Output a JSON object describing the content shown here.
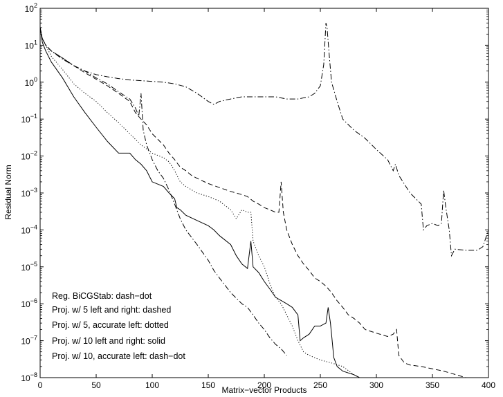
{
  "chart_data": {
    "type": "line",
    "xlabel": "Matrix−vector Products",
    "ylabel": "Residual Norm",
    "xlim": [
      0,
      400
    ],
    "ylim": [
      1e-08,
      100
    ],
    "yscale": "log",
    "grid": false,
    "x_ticks": [
      0,
      50,
      100,
      150,
      200,
      250,
      300,
      350,
      400
    ],
    "y_tick_exponents": [
      -8,
      -7,
      -6,
      -5,
      -4,
      -3,
      -2,
      -1,
      0,
      1,
      2
    ],
    "y_tick_base": "10",
    "legend_position": "bottom-left",
    "legend": [
      "Reg. BiCGStab: dash−dot",
      "Proj. w/ 5 left and right: dashed",
      "Proj. w/ 5, accurate left: dotted",
      "Proj. w/ 10 left and right: solid",
      "Proj. w/ 10, accurate left: dash−dot"
    ],
    "series": [
      {
        "style": "dashdot",
        "points": [
          [
            0,
            30
          ],
          [
            2,
            15
          ],
          [
            5,
            10
          ],
          [
            10,
            7
          ],
          [
            20,
            4.2
          ],
          [
            30,
            2.8
          ],
          [
            40,
            2.0
          ],
          [
            50,
            1.6
          ],
          [
            60,
            1.4
          ],
          [
            70,
            1.25
          ],
          [
            80,
            1.15
          ],
          [
            90,
            1.1
          ],
          [
            100,
            1.05
          ],
          [
            110,
            1.0
          ],
          [
            120,
            0.9
          ],
          [
            130,
            0.75
          ],
          [
            140,
            0.5
          ],
          [
            150,
            0.3
          ],
          [
            155,
            0.25
          ],
          [
            160,
            0.3
          ],
          [
            170,
            0.35
          ],
          [
            180,
            0.4
          ],
          [
            190,
            0.4
          ],
          [
            200,
            0.4
          ],
          [
            210,
            0.4
          ],
          [
            220,
            0.35
          ],
          [
            230,
            0.35
          ],
          [
            240,
            0.4
          ],
          [
            245,
            0.5
          ],
          [
            250,
            0.8
          ],
          [
            253,
            3
          ],
          [
            255,
            40
          ],
          [
            256,
            30
          ],
          [
            258,
            5
          ],
          [
            260,
            1
          ],
          [
            265,
            0.3
          ],
          [
            270,
            0.1
          ],
          [
            280,
            0.05
          ],
          [
            290,
            0.03
          ],
          [
            300,
            0.015
          ],
          [
            310,
            0.008
          ],
          [
            315,
            0.004
          ],
          [
            317,
            0.006
          ],
          [
            320,
            0.003
          ],
          [
            330,
            0.001
          ],
          [
            340,
            0.0005
          ],
          [
            342,
            0.0001
          ],
          [
            345,
            0.00013
          ],
          [
            350,
            0.00015
          ],
          [
            355,
            0.00013
          ],
          [
            358,
            0.00015
          ],
          [
            360,
            0.0012
          ],
          [
            362,
            0.0004
          ],
          [
            365,
            0.0001
          ],
          [
            367,
            2e-05
          ],
          [
            370,
            3e-05
          ],
          [
            380,
            2.8e-05
          ],
          [
            390,
            2.8e-05
          ],
          [
            395,
            3.5e-05
          ],
          [
            400,
            0.0001
          ]
        ]
      },
      {
        "style": "dashed",
        "points": [
          [
            0,
            30
          ],
          [
            2,
            15
          ],
          [
            5,
            10
          ],
          [
            10,
            7
          ],
          [
            20,
            4.5
          ],
          [
            30,
            2.8
          ],
          [
            40,
            1.8
          ],
          [
            50,
            1.2
          ],
          [
            60,
            0.8
          ],
          [
            70,
            0.5
          ],
          [
            80,
            0.3
          ],
          [
            85,
            0.15
          ],
          [
            90,
            0.1
          ],
          [
            95,
            0.07
          ],
          [
            100,
            0.04
          ],
          [
            110,
            0.02
          ],
          [
            115,
            0.012
          ],
          [
            120,
            0.008
          ],
          [
            125,
            0.005
          ],
          [
            130,
            0.004
          ],
          [
            135,
            0.003
          ],
          [
            140,
            0.0025
          ],
          [
            150,
            0.0018
          ],
          [
            160,
            0.0014
          ],
          [
            170,
            0.0011
          ],
          [
            180,
            0.0009
          ],
          [
            185,
            0.0008
          ],
          [
            190,
            0.0006
          ],
          [
            195,
            0.0005
          ],
          [
            200,
            0.0004
          ],
          [
            205,
            0.00035
          ],
          [
            210,
            0.0003
          ],
          [
            213,
            0.0003
          ],
          [
            215,
            0.002
          ],
          [
            217,
            0.0003
          ],
          [
            220,
            0.0001
          ],
          [
            225,
            4e-05
          ],
          [
            230,
            2e-05
          ],
          [
            235,
            1.2e-05
          ],
          [
            240,
            8e-06
          ],
          [
            245,
            5e-06
          ],
          [
            250,
            4e-06
          ],
          [
            255,
            3e-06
          ],
          [
            260,
            2e-06
          ],
          [
            265,
            1.2e-06
          ],
          [
            270,
            8e-07
          ],
          [
            275,
            5e-07
          ],
          [
            280,
            4e-07
          ],
          [
            285,
            3e-07
          ],
          [
            290,
            2e-07
          ],
          [
            300,
            1.6e-07
          ],
          [
            310,
            1.3e-07
          ],
          [
            315,
            1.5e-07
          ],
          [
            318,
            2e-07
          ],
          [
            320,
            4e-08
          ],
          [
            325,
            2.5e-08
          ],
          [
            330,
            2.2e-08
          ],
          [
            340,
            2e-08
          ],
          [
            360,
            1.5e-08
          ],
          [
            380,
            1e-08
          ],
          [
            400,
            9e-09
          ]
        ]
      },
      {
        "style": "dotted",
        "points": [
          [
            0,
            30
          ],
          [
            2,
            15
          ],
          [
            5,
            10
          ],
          [
            10,
            5
          ],
          [
            20,
            2.2
          ],
          [
            30,
            0.9
          ],
          [
            40,
            0.5
          ],
          [
            50,
            0.3
          ],
          [
            60,
            0.15
          ],
          [
            70,
            0.08
          ],
          [
            80,
            0.04
          ],
          [
            90,
            0.02
          ],
          [
            100,
            0.012
          ],
          [
            110,
            0.009
          ],
          [
            115,
            0.007
          ],
          [
            120,
            0.004
          ],
          [
            125,
            0.002
          ],
          [
            130,
            0.0015
          ],
          [
            140,
            0.001
          ],
          [
            150,
            0.0008
          ],
          [
            160,
            0.0006
          ],
          [
            170,
            0.00035
          ],
          [
            175,
            0.0002
          ],
          [
            180,
            0.00035
          ],
          [
            185,
            0.0003
          ],
          [
            188,
            0.0003
          ],
          [
            190,
            5e-05
          ],
          [
            195,
            2e-05
          ],
          [
            200,
            1e-05
          ],
          [
            205,
            3.5e-06
          ],
          [
            210,
            1.5e-06
          ],
          [
            215,
            1e-06
          ],
          [
            220,
            5e-07
          ],
          [
            225,
            2.5e-07
          ],
          [
            230,
            1e-07
          ],
          [
            235,
            5e-08
          ],
          [
            240,
            4e-08
          ],
          [
            250,
            3e-08
          ],
          [
            260,
            2.5e-08
          ],
          [
            270,
            2e-08
          ],
          [
            280,
            1.2e-08
          ],
          [
            285,
            1e-08
          ]
        ]
      },
      {
        "style": "solid",
        "points": [
          [
            0,
            30
          ],
          [
            2,
            12
          ],
          [
            5,
            7
          ],
          [
            10,
            3.5
          ],
          [
            20,
            1.3
          ],
          [
            30,
            0.4
          ],
          [
            40,
            0.15
          ],
          [
            50,
            0.06
          ],
          [
            60,
            0.025
          ],
          [
            70,
            0.012
          ],
          [
            80,
            0.012
          ],
          [
            85,
            0.008
          ],
          [
            90,
            0.006
          ],
          [
            95,
            0.004
          ],
          [
            100,
            0.002
          ],
          [
            110,
            0.0015
          ],
          [
            115,
            0.001
          ],
          [
            120,
            0.0007
          ],
          [
            122,
            0.0004
          ],
          [
            125,
            0.00035
          ],
          [
            130,
            0.00025
          ],
          [
            140,
            0.00018
          ],
          [
            150,
            0.00013
          ],
          [
            155,
            0.0001
          ],
          [
            160,
            7e-05
          ],
          [
            170,
            4e-05
          ],
          [
            175,
            2e-05
          ],
          [
            180,
            1.2e-05
          ],
          [
            185,
            9e-06
          ],
          [
            188,
            5e-05
          ],
          [
            190,
            1e-05
          ],
          [
            195,
            7e-06
          ],
          [
            200,
            4e-06
          ],
          [
            205,
            2.5e-06
          ],
          [
            210,
            1.5e-06
          ],
          [
            220,
            1e-06
          ],
          [
            225,
            8e-07
          ],
          [
            230,
            5e-07
          ],
          [
            232,
            1e-07
          ],
          [
            235,
            1.2e-07
          ],
          [
            240,
            1.5e-07
          ],
          [
            245,
            2.5e-07
          ],
          [
            250,
            2.5e-07
          ],
          [
            255,
            3e-07
          ],
          [
            257,
            8e-07
          ],
          [
            259,
            3e-07
          ],
          [
            260,
            1.5e-07
          ],
          [
            262,
            3.5e-08
          ],
          [
            265,
            2e-08
          ],
          [
            270,
            1.5e-08
          ],
          [
            280,
            1.2e-08
          ],
          [
            285,
            1e-08
          ]
        ]
      },
      {
        "style": "dashdot",
        "points": [
          [
            0,
            30
          ],
          [
            2,
            15
          ],
          [
            5,
            10
          ],
          [
            10,
            7
          ],
          [
            20,
            4.5
          ],
          [
            30,
            2.8
          ],
          [
            40,
            2.0
          ],
          [
            50,
            1.3
          ],
          [
            60,
            0.9
          ],
          [
            70,
            0.55
          ],
          [
            80,
            0.35
          ],
          [
            85,
            0.2
          ],
          [
            88,
            0.12
          ],
          [
            90,
            0.5
          ],
          [
            92,
            0.05
          ],
          [
            95,
            0.02
          ],
          [
            100,
            0.008
          ],
          [
            105,
            0.004
          ],
          [
            110,
            0.0025
          ],
          [
            115,
            0.0012
          ],
          [
            120,
            0.0005
          ],
          [
            125,
            0.0002
          ],
          [
            130,
            0.0001
          ],
          [
            140,
            4e-05
          ],
          [
            150,
            1.5e-05
          ],
          [
            155,
            8e-06
          ],
          [
            160,
            5e-06
          ],
          [
            170,
            2e-06
          ],
          [
            180,
            1e-06
          ],
          [
            185,
            8e-07
          ],
          [
            190,
            5e-07
          ],
          [
            195,
            3e-07
          ],
          [
            200,
            2e-07
          ],
          [
            205,
            1.2e-07
          ],
          [
            210,
            8e-08
          ],
          [
            215,
            6e-08
          ],
          [
            220,
            4e-08
          ]
        ]
      }
    ]
  }
}
